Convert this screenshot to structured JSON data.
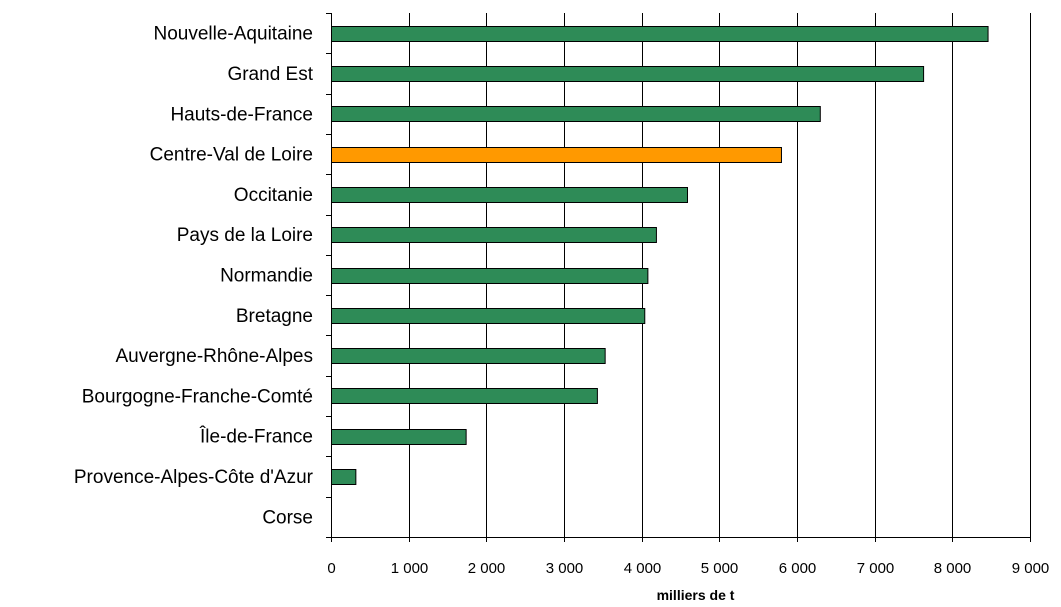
{
  "chart_data": {
    "type": "bar",
    "orientation": "horizontal",
    "categories": [
      "Nouvelle-Aquitaine",
      "Grand Est",
      "Hauts-de-France",
      "Centre-Val de Loire",
      "Occitanie",
      "Pays de la Loire",
      "Normandie",
      "Bretagne",
      "Auvergne-Rhône-Alpes",
      "Bourgogne-Franche-Comté",
      "Île-de-France",
      "Provence-Alpes-Côte d'Azur",
      "Corse"
    ],
    "values": [
      8460,
      7630,
      6300,
      5800,
      4590,
      4190,
      4080,
      4040,
      3530,
      3430,
      1740,
      320,
      0
    ],
    "highlight_index": 3,
    "xlabel": "milliers de t",
    "xlim": [
      0,
      9000
    ],
    "xticks": [
      0,
      1000,
      2000,
      3000,
      4000,
      5000,
      6000,
      7000,
      8000,
      9000
    ],
    "xtick_labels": [
      "0",
      "1 000",
      "2 000",
      "3 000",
      "4 000",
      "5 000",
      "6 000",
      "7 000",
      "8 000",
      "9 000"
    ],
    "grid": "vertical",
    "colors": {
      "bar": "#2e8b57",
      "highlight": "#ff9900",
      "bar_stroke": "#000000",
      "grid": "#000000"
    }
  }
}
